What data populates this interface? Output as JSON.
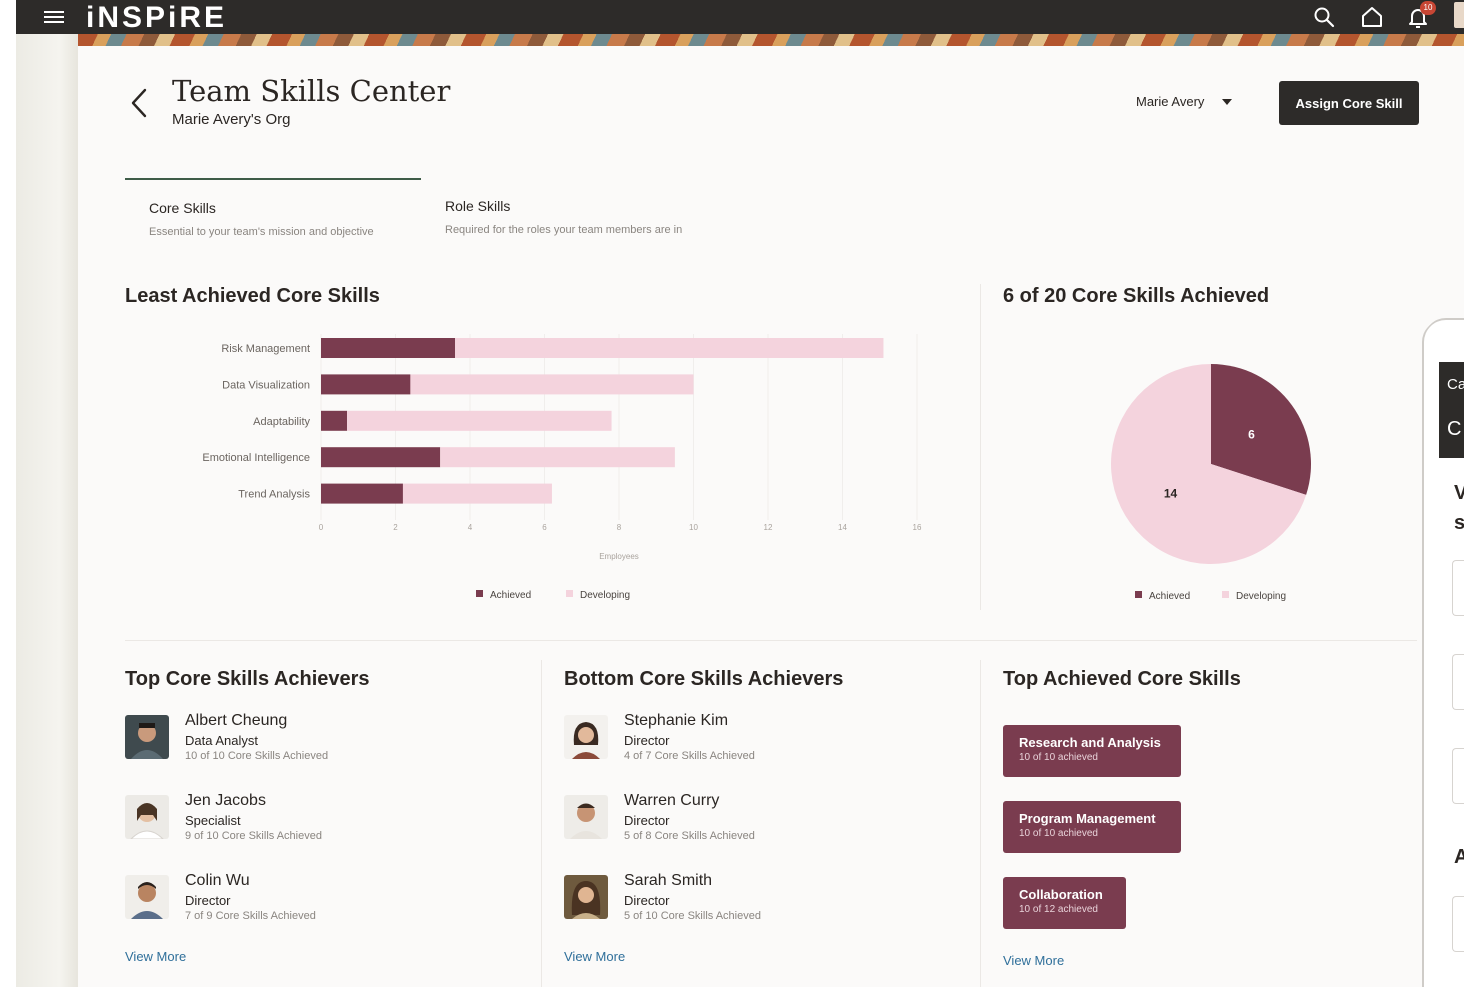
{
  "app": {
    "logo": "iNSPiRE",
    "notification_count": "10"
  },
  "header": {
    "title": "Team Skills Center",
    "subtitle": "Marie Avery's Org",
    "person_select": "Marie Avery",
    "assign_button": "Assign Core Skill"
  },
  "tabs": [
    {
      "label": "Core Skills",
      "description": "Essential to your team's mission and objective",
      "active": true
    },
    {
      "label": "Role Skills",
      "description": "Required for the roles your team members are in",
      "active": false
    }
  ],
  "least_achieved": {
    "title": "Least Achieved Core Skills"
  },
  "summary": {
    "title": "6 of 20 Core Skills Achieved"
  },
  "chart_data": [
    {
      "type": "bar",
      "orientation": "horizontal",
      "stacked": true,
      "categories": [
        "Risk Management",
        "Data Visualization",
        "Adaptability",
        "Emotional Intelligence",
        "Trend Analysis"
      ],
      "series": [
        {
          "name": "Achieved",
          "values": [
            3.6,
            2.4,
            0.7,
            3.2,
            2.2
          ]
        },
        {
          "name": "Developing",
          "values": [
            11.5,
            7.6,
            7.1,
            6.3,
            4.0
          ]
        }
      ],
      "xticks": [
        "0",
        "2",
        "4",
        "6",
        "8",
        "10",
        "12",
        "14",
        "16"
      ],
      "xlim": [
        0,
        16
      ],
      "xlabel": "Employees",
      "legend": "bottom",
      "colors": {
        "Achieved": "#7a3c4f",
        "Developing": "#f4d3dd"
      }
    },
    {
      "type": "pie",
      "slices": [
        {
          "name": "Achieved",
          "value": 6
        },
        {
          "name": "Developing",
          "value": 14
        }
      ],
      "legend": "bottom",
      "colors": {
        "Achieved": "#7a3c4f",
        "Developing": "#f4d3dd"
      }
    }
  ],
  "top_achievers": {
    "title": "Top Core Skills Achievers",
    "people": [
      {
        "name": "Albert Cheung",
        "role": "Data Analyst",
        "stat": "10 of 10 Core Skills Achieved"
      },
      {
        "name": "Jen Jacobs",
        "role": "Specialist",
        "stat": "9 of 10 Core Skills Achieved"
      },
      {
        "name": "Colin Wu",
        "role": "Director",
        "stat": "7 of 9 Core Skills Achieved"
      }
    ],
    "view_more": "View More"
  },
  "bottom_achievers": {
    "title": "Bottom Core Skills Achievers",
    "people": [
      {
        "name": "Stephanie Kim",
        "role": "Director",
        "stat": "4 of 7 Core Skills Achieved"
      },
      {
        "name": "Warren Curry",
        "role": "Director",
        "stat": "5 of 8 Core Skills Achieved"
      },
      {
        "name": "Sarah Smith",
        "role": "Director",
        "stat": "5 of 10 Core Skills Achieved"
      }
    ],
    "view_more": "View More"
  },
  "top_skills": {
    "title": "Top Achieved Core Skills",
    "skills": [
      {
        "name": "Research and Analysis",
        "stat": "10 of 10 achieved"
      },
      {
        "name": "Program Management",
        "stat": "10 of 10 achieved"
      },
      {
        "name": "Collaboration",
        "stat": "10 of 12 achieved"
      }
    ],
    "view_more": "View More"
  },
  "drawer": {
    "head_line1": "Ca",
    "head_line2": "C",
    "char_1": "V",
    "char_2": "s",
    "char_3": "A"
  }
}
